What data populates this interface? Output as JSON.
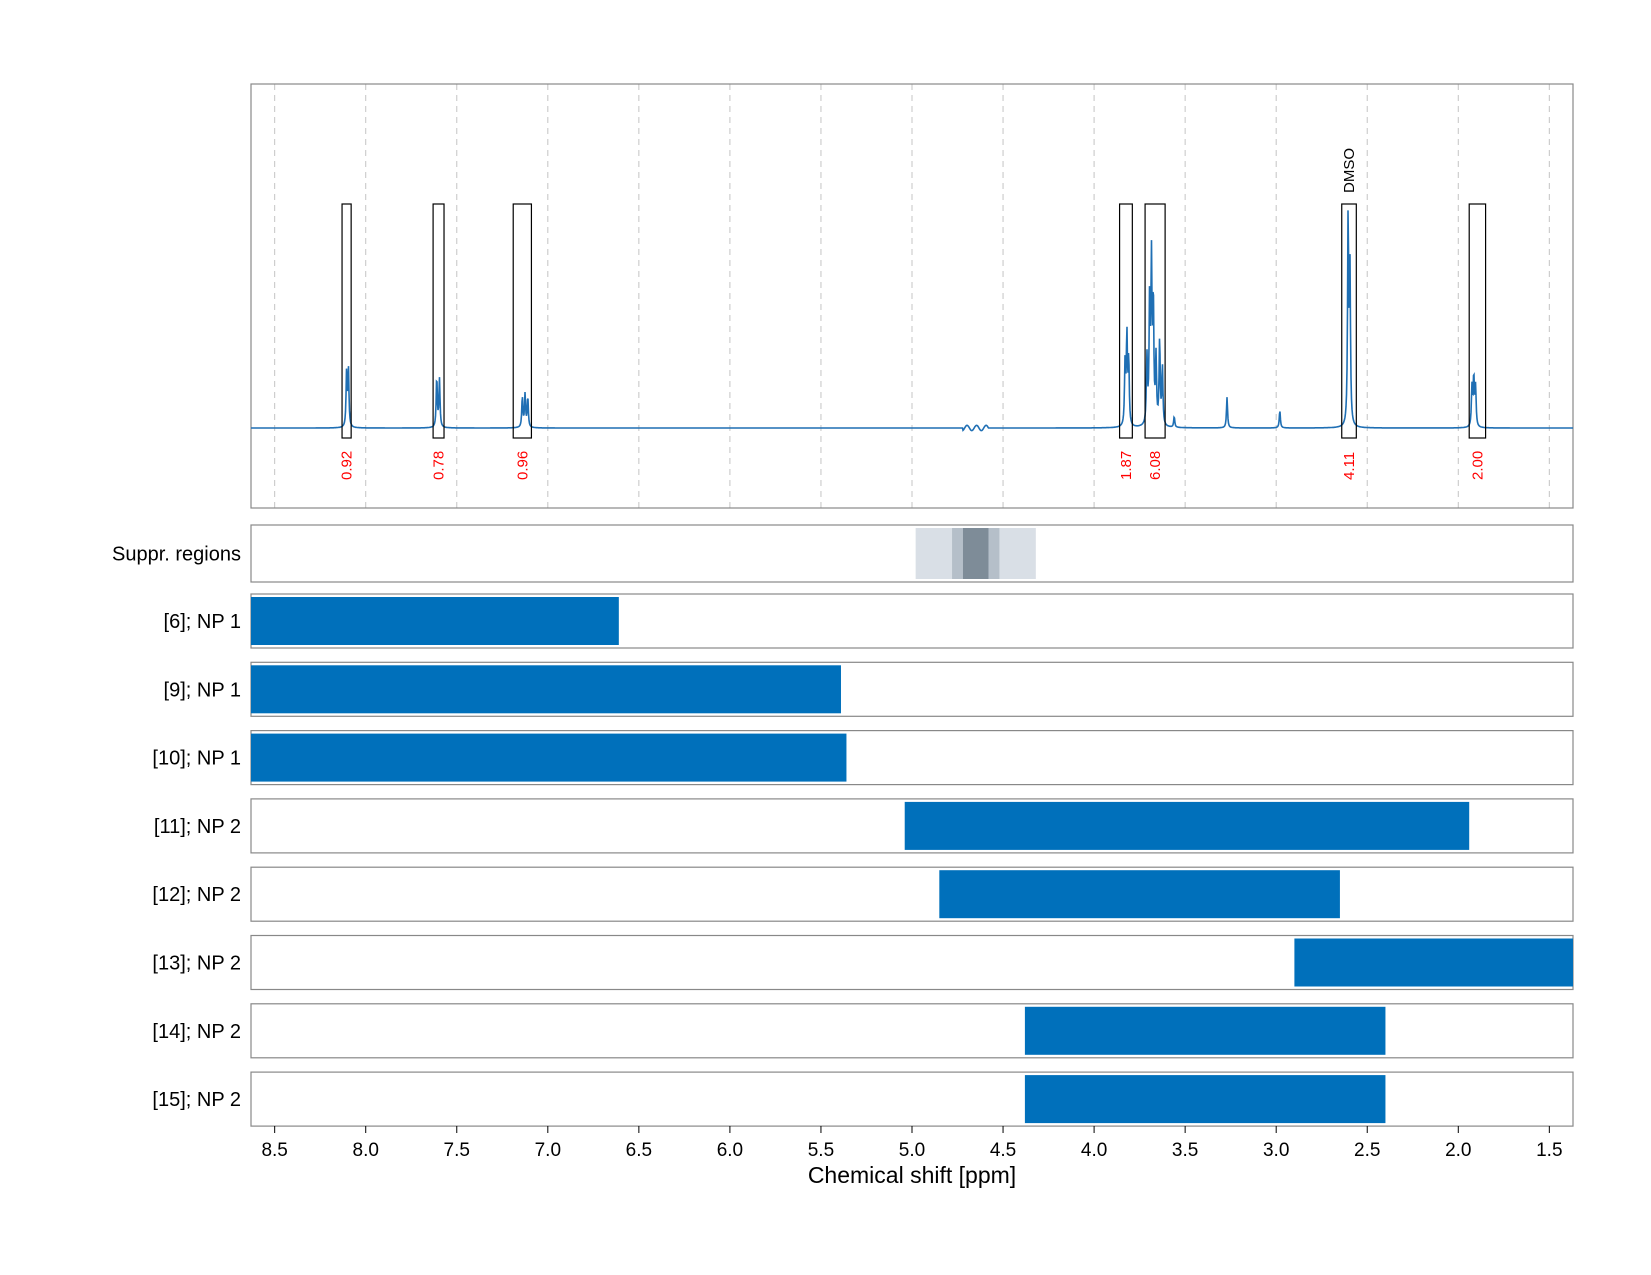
{
  "chart_data": {
    "type": "nmr_spectrum_with_range_tracks",
    "xlabel": "Chemical shift [ppm]",
    "xlim": [
      8.63,
      1.37
    ],
    "x_reversed": true,
    "xticks": [
      "8.5",
      "8.0",
      "7.5",
      "7.0",
      "6.5",
      "6.0",
      "5.5",
      "5.0",
      "4.5",
      "4.0",
      "3.5",
      "3.0",
      "2.5",
      "2.0",
      "1.5"
    ],
    "grid": "vertical dashed",
    "colors": {
      "spectrum": "#1f6fb4",
      "bar": "#0070bb",
      "integral_label": "#ff0000",
      "suppression_light": "#d9dfe6",
      "suppression_mid": "#b5bfc9",
      "suppression_dark": "#7e8c98"
    },
    "peaks": [
      {
        "ppm": 8.105,
        "height": 0.25
      },
      {
        "ppm": 8.095,
        "height": 0.26
      },
      {
        "ppm": 7.61,
        "height": 0.23
      },
      {
        "ppm": 7.595,
        "height": 0.22
      },
      {
        "ppm": 7.14,
        "height": 0.14
      },
      {
        "ppm": 7.125,
        "height": 0.15
      },
      {
        "ppm": 7.11,
        "height": 0.14
      },
      {
        "ppm": 3.83,
        "height": 0.28
      },
      {
        "ppm": 3.82,
        "height": 0.41
      },
      {
        "ppm": 3.81,
        "height": 0.3
      },
      {
        "ppm": 3.71,
        "height": 0.31
      },
      {
        "ppm": 3.695,
        "height": 0.56
      },
      {
        "ppm": 3.685,
        "height": 0.72
      },
      {
        "ppm": 3.675,
        "height": 0.56
      },
      {
        "ppm": 3.66,
        "height": 0.3
      },
      {
        "ppm": 3.64,
        "height": 0.39
      },
      {
        "ppm": 3.625,
        "height": 0.27
      },
      {
        "ppm": 3.56,
        "height": 0.05
      },
      {
        "ppm": 3.27,
        "height": 0.14
      },
      {
        "ppm": 2.98,
        "height": 0.08
      },
      {
        "ppm": 2.605,
        "height": 0.95
      },
      {
        "ppm": 2.595,
        "height": 0.7
      },
      {
        "ppm": 1.925,
        "height": 0.18
      },
      {
        "ppm": 1.915,
        "height": 0.23
      },
      {
        "ppm": 1.905,
        "height": 0.18
      }
    ],
    "integrals": [
      {
        "from": 8.13,
        "to": 8.08,
        "label": "0.92"
      },
      {
        "from": 7.63,
        "to": 7.57,
        "label": "0.78"
      },
      {
        "from": 7.19,
        "to": 7.09,
        "label": "0.96"
      },
      {
        "from": 3.86,
        "to": 3.79,
        "label": "1.87"
      },
      {
        "from": 3.72,
        "to": 3.61,
        "label": "6.08"
      },
      {
        "from": 2.64,
        "to": 2.56,
        "label": "4.11",
        "annotation": "DMSO"
      },
      {
        "from": 1.94,
        "to": 1.85,
        "label": "2.00"
      }
    ],
    "suppression_regions": {
      "label": "Suppr. regions",
      "bands": [
        {
          "from": 4.98,
          "to": 4.32,
          "shade": "light"
        },
        {
          "from": 4.78,
          "to": 4.52,
          "shade": "mid"
        },
        {
          "from": 4.72,
          "to": 4.58,
          "shade": "dark"
        }
      ]
    },
    "tracks": [
      {
        "label": "[6]; NP 1",
        "from": 8.63,
        "to": 6.61
      },
      {
        "label": "[9]; NP 1",
        "from": 8.63,
        "to": 5.39
      },
      {
        "label": "[10]; NP 1",
        "from": 8.63,
        "to": 5.36
      },
      {
        "label": "[11]; NP 2",
        "from": 5.04,
        "to": 1.94
      },
      {
        "label": "[12]; NP 2",
        "from": 4.85,
        "to": 2.65
      },
      {
        "label": "[13]; NP 2",
        "from": 2.9,
        "to": 1.37
      },
      {
        "label": "[14]; NP 2",
        "from": 4.38,
        "to": 2.4
      },
      {
        "label": "[15]; NP 2",
        "from": 4.38,
        "to": 2.4
      }
    ]
  }
}
